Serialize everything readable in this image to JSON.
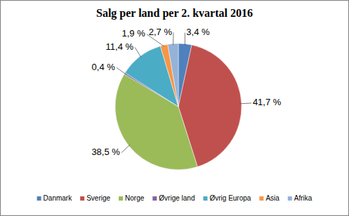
{
  "chart_data": {
    "type": "pie",
    "title": "Salg per land per 2. kvartal 2016",
    "categories": [
      "Danmark",
      "Sverige",
      "Norge",
      "Øvrige land",
      "Øvrig Europa",
      "Asia",
      "Afrika"
    ],
    "values": [
      3.4,
      41.7,
      38.5,
      0.4,
      11.4,
      1.9,
      2.7
    ],
    "value_labels": [
      "3,4 %",
      "41,7 %",
      "38,5 %",
      "0,4 %",
      "11,4 %",
      "1,9 %",
      "2,7 %"
    ],
    "colors": [
      "#4f81bd",
      "#c0504d",
      "#9bbb59",
      "#8064a2",
      "#4bacc6",
      "#f79646",
      "#95b3d7"
    ],
    "data_labels": true,
    "legend": "bottom"
  }
}
